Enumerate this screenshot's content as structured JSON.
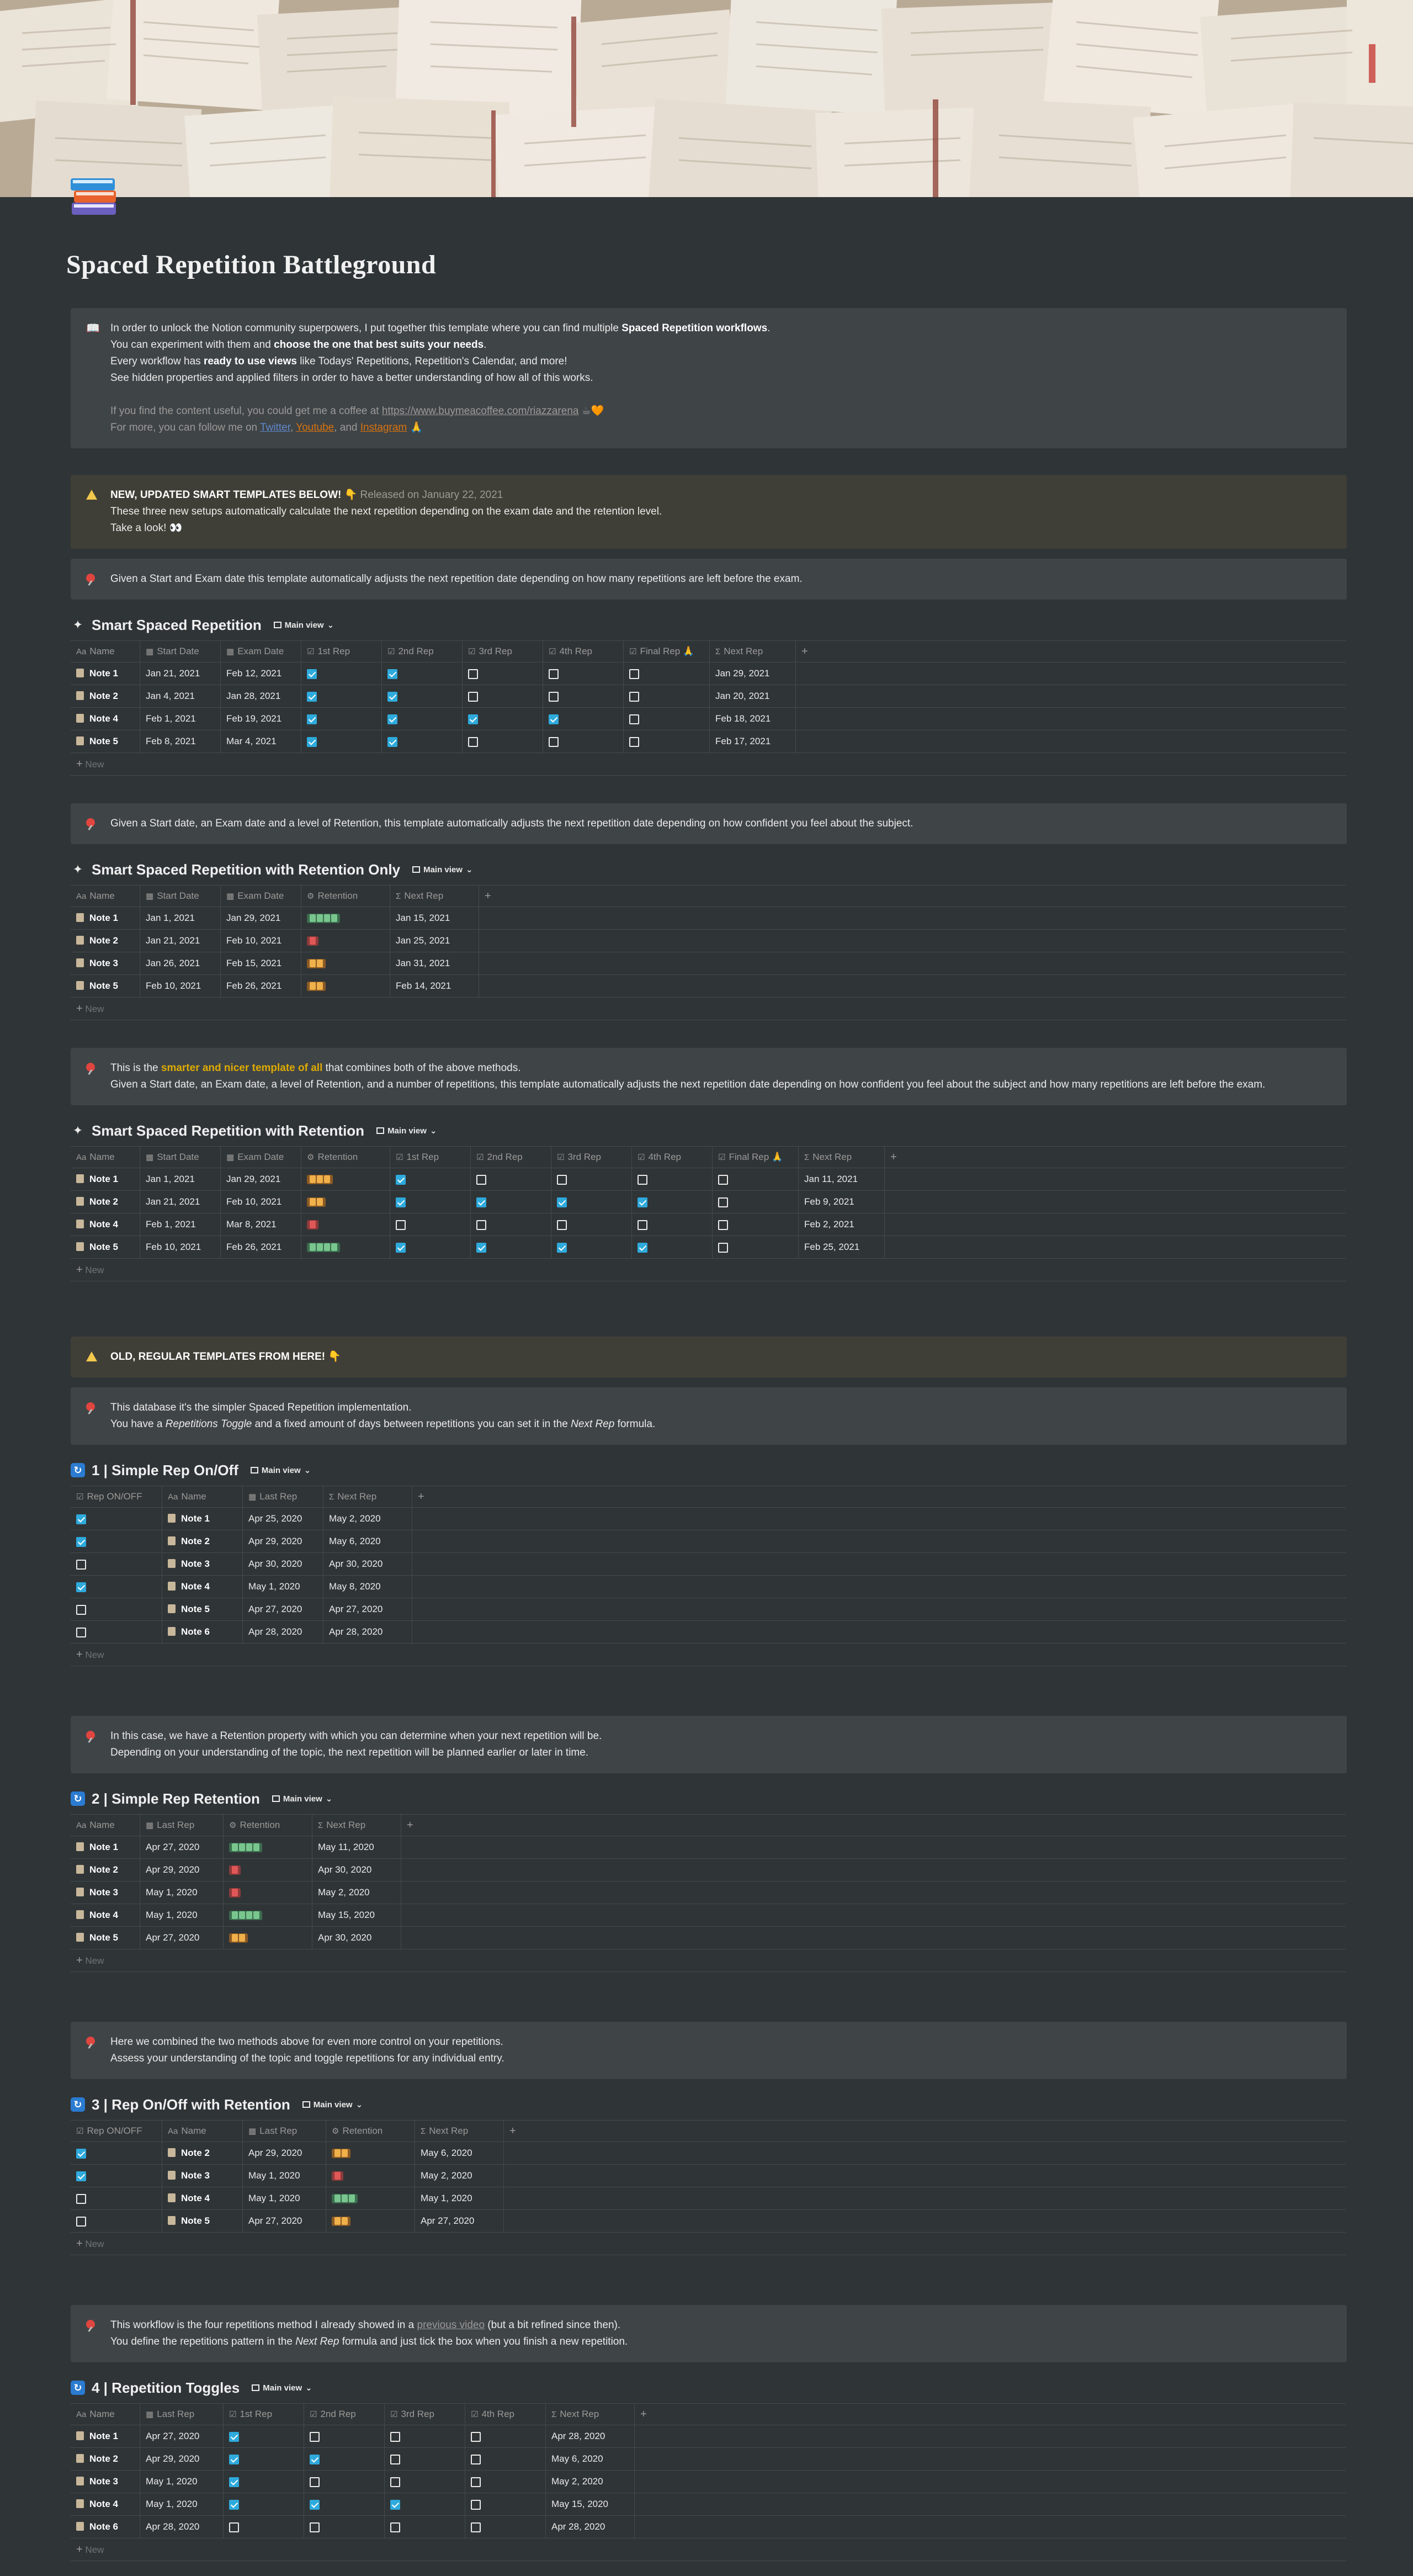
{
  "page": {
    "title": "Spaced Repetition Battleground"
  },
  "intro": {
    "lines": [
      [
        "In order to unlock the Notion community superpowers, I put together this template where you can find multiple ",
        "Spaced Repetition workflows",
        "."
      ],
      [
        "You can experiment with them and ",
        "choose the one that best suits your needs",
        "."
      ],
      [
        "Every workflow has ",
        "ready to use views",
        " like Todays' Repetitions, Repetition's Calendar, and more!"
      ],
      [
        "See hidden properties and applied filters in order to have a better understanding of how all of this works."
      ]
    ],
    "coffee_text": "If you find the content useful, you could get me a coffee at ",
    "coffee_link": "https://www.buymeacoffee.com/riazzarena",
    "coffee_emoji": "☕🧡",
    "follow_text": "For more, you can follow me on ",
    "twitter": "Twitter",
    "youtube": "Youtube",
    "and": ", and ",
    "instagram": "Instagram",
    "pray": "🙏"
  },
  "new_banner": {
    "title": "NEW, UPDATED SMART TEMPLATES BELOW! 👇",
    "released": " Released on January 22, 2021",
    "line2": "These three new setups automatically calculate the next repetition depending on the exam date and the retention level.",
    "line3": "Take a look! 👀"
  },
  "smart_desc": "Given a Start and Exam date this template automatically adjusts the next repetition date depending on how many repetitions are left before the exam.",
  "smart": {
    "title": "Smart Spaced Repetition",
    "view": "Main view",
    "columns": [
      "Name",
      "Start Date",
      "Exam Date",
      "1st Rep",
      "2nd Rep",
      "3rd Rep",
      "4th Rep",
      "Final Rep 🙏",
      "Next Rep"
    ],
    "rows": [
      {
        "name": "Note 1",
        "start": "Jan 21, 2021",
        "exam": "Feb 12, 2021",
        "reps": [
          true,
          true,
          false,
          false,
          false
        ],
        "next": "Jan 29, 2021"
      },
      {
        "name": "Note 2",
        "start": "Jan 4, 2021",
        "exam": "Jan 28, 2021",
        "reps": [
          true,
          true,
          false,
          false,
          false
        ],
        "next": "Jan 20, 2021"
      },
      {
        "name": "Note 4",
        "start": "Feb 1, 2021",
        "exam": "Feb 19, 2021",
        "reps": [
          true,
          true,
          true,
          true,
          false
        ],
        "next": "Feb 18, 2021"
      },
      {
        "name": "Note 5",
        "start": "Feb 8, 2021",
        "exam": "Mar 4, 2021",
        "reps": [
          true,
          true,
          false,
          false,
          false
        ],
        "next": "Feb 17, 2021"
      }
    ],
    "new": "New"
  },
  "ret_desc": "Given a Start date, an Exam date and a level of Retention, this template automatically adjusts the next repetition date depending on how confident you feel about the subject.",
  "ret_only": {
    "title": "Smart Spaced Repetition with Retention Only",
    "view": "Main view",
    "columns": [
      "Name",
      "Start Date",
      "Exam Date",
      "Retention",
      "Next Rep"
    ],
    "rows": [
      {
        "name": "Note 1",
        "start": "Jan 1, 2021",
        "exam": "Jan 29, 2021",
        "ret": "green4",
        "next": "Jan 15, 2021"
      },
      {
        "name": "Note 2",
        "start": "Jan 21, 2021",
        "exam": "Feb 10, 2021",
        "ret": "red1",
        "next": "Jan 25, 2021"
      },
      {
        "name": "Note 3",
        "start": "Jan 26, 2021",
        "exam": "Feb 15, 2021",
        "ret": "orange2",
        "next": "Jan 31, 2021"
      },
      {
        "name": "Note 5",
        "start": "Feb 10, 2021",
        "exam": "Feb 26, 2021",
        "ret": "orange2",
        "next": "Feb 14, 2021"
      }
    ],
    "new": "New"
  },
  "combo_desc": {
    "pre": "This is the ",
    "highlight": "smarter and nicer template of all",
    "post": " that combines both of the above methods.",
    "line2": "Given a Start date, an Exam date, a level of Retention, and a number of repetitions, this template automatically adjusts the next repetition date depending on how confident you feel about the subject and how many repetitions are left before the exam."
  },
  "combo": {
    "title": "Smart Spaced Repetition with Retention",
    "view": "Main view",
    "columns": [
      "Name",
      "Start Date",
      "Exam Date",
      "Retention",
      "1st Rep",
      "2nd Rep",
      "3rd Rep",
      "4th Rep",
      "Final Rep 🙏",
      "Next Rep"
    ],
    "rows": [
      {
        "name": "Note 1",
        "start": "Jan 1, 2021",
        "exam": "Jan 29, 2021",
        "ret": "orange3",
        "reps": [
          true,
          false,
          false,
          false,
          false
        ],
        "next": "Jan 11, 2021"
      },
      {
        "name": "Note 2",
        "start": "Jan 21, 2021",
        "exam": "Feb 10, 2021",
        "ret": "orange2",
        "reps": [
          true,
          true,
          true,
          true,
          false
        ],
        "next": "Feb 9, 2021"
      },
      {
        "name": "Note 4",
        "start": "Feb 1, 2021",
        "exam": "Mar 8, 2021",
        "ret": "red1",
        "reps": [
          false,
          false,
          false,
          false,
          false
        ],
        "next": "Feb 2, 2021"
      },
      {
        "name": "Note 5",
        "start": "Feb 10, 2021",
        "exam": "Feb 26, 2021",
        "ret": "green4",
        "reps": [
          true,
          true,
          true,
          true,
          false
        ],
        "next": "Feb 25, 2021"
      }
    ],
    "new": "New"
  },
  "old_banner": {
    "title": "OLD, REGULAR TEMPLATES FROM HERE! 👇"
  },
  "simple_desc": {
    "line1": "This database it's the simpler Spaced Repetition implementation.",
    "pre": "You have a ",
    "italic1": "Repetitions Toggle",
    "mid": " and a fixed amount of days between repetitions you can set it in the ",
    "italic2": "Next Rep",
    "post": " formula."
  },
  "simple": {
    "title": "1 | Simple Rep On/Off",
    "view": "Main view",
    "columns": [
      "Rep ON/OFF",
      "Name",
      "Last Rep",
      "Next Rep"
    ],
    "rows": [
      {
        "on": true,
        "name": "Note 1",
        "last": "Apr 25, 2020",
        "next": "May 2, 2020"
      },
      {
        "on": true,
        "name": "Note 2",
        "last": "Apr 29, 2020",
        "next": "May 6, 2020"
      },
      {
        "on": false,
        "name": "Note 3",
        "last": "Apr 30, 2020",
        "next": "Apr 30, 2020"
      },
      {
        "on": true,
        "name": "Note 4",
        "last": "May 1, 2020",
        "next": "May 8, 2020"
      },
      {
        "on": false,
        "name": "Note 5",
        "last": "Apr 27, 2020",
        "next": "Apr 27, 2020"
      },
      {
        "on": false,
        "name": "Note 6",
        "last": "Apr 28, 2020",
        "next": "Apr 28, 2020"
      }
    ],
    "new": "New"
  },
  "simple_ret_desc": {
    "line1": "In this case, we have a Retention property with which you can determine when your next repetition will be.",
    "line2": "Depending on your understanding of the topic, the next repetition will be planned earlier or later in time."
  },
  "simple_ret": {
    "title": "2 | Simple Rep Retention",
    "view": "Main view",
    "columns": [
      "Name",
      "Last Rep",
      "Retention",
      "Next Rep"
    ],
    "rows": [
      {
        "name": "Note 1",
        "last": "Apr 27, 2020",
        "ret": "green4",
        "next": "May 11, 2020"
      },
      {
        "name": "Note 2",
        "last": "Apr 29, 2020",
        "ret": "red1",
        "next": "Apr 30, 2020"
      },
      {
        "name": "Note 3",
        "last": "May 1, 2020",
        "ret": "red1",
        "next": "May 2, 2020"
      },
      {
        "name": "Note 4",
        "last": "May 1, 2020",
        "ret": "green4",
        "next": "May 15, 2020"
      },
      {
        "name": "Note 5",
        "last": "Apr 27, 2020",
        "ret": "orange2",
        "next": "Apr 30, 2020"
      }
    ],
    "new": "New"
  },
  "onoff_ret_desc": {
    "line1": "Here we combined the two methods above for even more control on your repetitions.",
    "line2": "Assess your understanding of the topic and toggle repetitions for any individual entry."
  },
  "onoff_ret": {
    "title": "3 | Rep On/Off with Retention",
    "view": "Main view",
    "columns": [
      "Rep ON/OFF",
      "Name",
      "Last Rep",
      "Retention",
      "Next Rep"
    ],
    "rows": [
      {
        "on": true,
        "name": "Note 2",
        "last": "Apr 29, 2020",
        "ret": "orange2",
        "next": "May 6, 2020"
      },
      {
        "on": true,
        "name": "Note 3",
        "last": "May 1, 2020",
        "ret": "red1",
        "next": "May 2, 2020"
      },
      {
        "on": false,
        "name": "Note 4",
        "last": "May 1, 2020",
        "ret": "green3",
        "next": "May 1, 2020"
      },
      {
        "on": false,
        "name": "Note 5",
        "last": "Apr 27, 2020",
        "ret": "orange2",
        "next": "Apr 27, 2020"
      }
    ],
    "new": "New"
  },
  "toggles_desc": {
    "pre": "This workflow is the four repetitions method I already showed in a ",
    "link": "previous video",
    "post": " (but a bit refined since then).",
    "pre2": "You define the repetitions pattern in the ",
    "italic": "Next Rep",
    "post2": " formula and just tick the box when you finish a new repetition."
  },
  "toggles": {
    "title": "4 | Repetition Toggles",
    "view": "Main view",
    "columns": [
      "Name",
      "Last Rep",
      "1st Rep",
      "2nd Rep",
      "3rd Rep",
      "4th Rep",
      "Next Rep"
    ],
    "rows": [
      {
        "name": "Note 1",
        "last": "Apr 27, 2020",
        "reps": [
          true,
          false,
          false,
          false
        ],
        "next": "Apr 28, 2020"
      },
      {
        "name": "Note 2",
        "last": "Apr 29, 2020",
        "reps": [
          true,
          true,
          false,
          false
        ],
        "next": "May 6, 2020"
      },
      {
        "name": "Note 3",
        "last": "May 1, 2020",
        "reps": [
          true,
          false,
          false,
          false
        ],
        "next": "May 2, 2020"
      },
      {
        "name": "Note 4",
        "last": "May 1, 2020",
        "reps": [
          true,
          true,
          true,
          false
        ],
        "next": "May 15, 2020"
      },
      {
        "name": "Note 6",
        "last": "Apr 28, 2020",
        "reps": [
          false,
          false,
          false,
          false
        ],
        "next": "Apr 28, 2020"
      }
    ],
    "new": "New"
  },
  "colors": {
    "background": "#2f3437",
    "callout": "#3f4447",
    "checkbox_on": "#2eaadc",
    "accent_yellow": "#dfab01"
  }
}
